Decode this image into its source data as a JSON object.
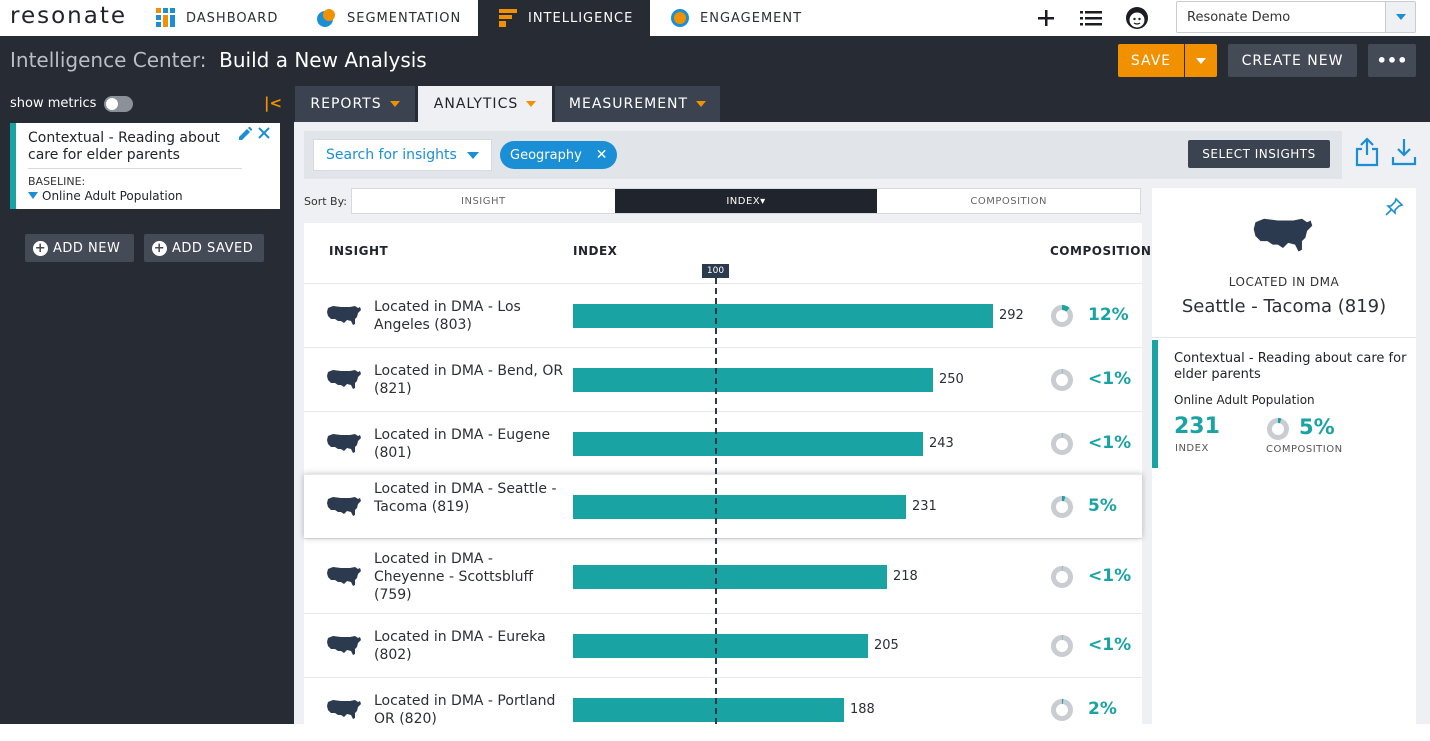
{
  "nav": {
    "logo": "resonate",
    "tabs": [
      {
        "label": "DASHBOARD",
        "icon": "dashboard-grid-icon"
      },
      {
        "label": "SEGMENTATION",
        "icon": "segmentation-icon"
      },
      {
        "label": "INTELLIGENCE",
        "icon": "intelligence-icon",
        "active": true
      },
      {
        "label": "ENGAGEMENT",
        "icon": "engagement-icon"
      }
    ],
    "account": "Resonate Demo"
  },
  "header": {
    "prefix": "Intelligence Center:",
    "title": "Build a New Analysis",
    "save": "SAVE",
    "create_new": "CREATE NEW",
    "more": "•••"
  },
  "sidebar": {
    "show_metrics": "show metrics",
    "card_title": "Contextual - Reading about care for elder parents",
    "baseline_label": "BASELINE:",
    "baseline_value": "Online Adult Population",
    "add_new": "ADD NEW",
    "add_saved": "ADD SAVED"
  },
  "subtabs": [
    {
      "label": "REPORTS"
    },
    {
      "label": "ANALYTICS",
      "active": true
    },
    {
      "label": "MEASUREMENT"
    }
  ],
  "filters": {
    "search_placeholder": "Search for insights",
    "chip": "Geography",
    "select_insights": "SELECT INSIGHTS"
  },
  "sort": {
    "label": "Sort By:",
    "options": [
      "INSIGHT",
      "INDEX",
      "COMPOSITION"
    ],
    "active": "INDEX"
  },
  "table": {
    "headers": {
      "insight": "INSIGHT",
      "index": "INDEX",
      "composition": "COMPOSITION"
    },
    "reference": "100",
    "rows": [
      {
        "label": "Located in DMA - Los Angeles (803)",
        "index": 292,
        "composition": "12%",
        "comp_fraction": 0.12
      },
      {
        "label": "Located in DMA - Bend, OR (821)",
        "index": 250,
        "composition": "<1%",
        "comp_fraction": 0.0
      },
      {
        "label": "Located in DMA - Eugene (801)",
        "index": 243,
        "composition": "<1%",
        "comp_fraction": 0.0
      },
      {
        "label": "Located in DMA - Seattle - Tacoma (819)",
        "index": 231,
        "composition": "5%",
        "comp_fraction": 0.05,
        "selected": true
      },
      {
        "label": "Located in DMA - Cheyenne - Scottsbluff (759)",
        "index": 218,
        "composition": "<1%",
        "comp_fraction": 0.0
      },
      {
        "label": "Located in DMA - Eureka (802)",
        "index": 205,
        "composition": "<1%",
        "comp_fraction": 0.0
      },
      {
        "label": "Located in DMA - Portland OR (820)",
        "index": 188,
        "composition": "2%",
        "comp_fraction": 0.02
      }
    ]
  },
  "detail": {
    "caption": "LOCATED IN DMA",
    "name": "Seattle - Tacoma (819)",
    "segment": "Contextual - Reading about care for elder parents",
    "baseline": "Online Adult Population",
    "index": "231",
    "index_label": "INDEX",
    "composition": "5%",
    "composition_label": "COMPOSITION",
    "comp_fraction": 0.05
  },
  "colors": {
    "accent": "#f29100",
    "teal": "#1aa3a3",
    "dark": "#262b34",
    "blue": "#1b8fd6"
  }
}
